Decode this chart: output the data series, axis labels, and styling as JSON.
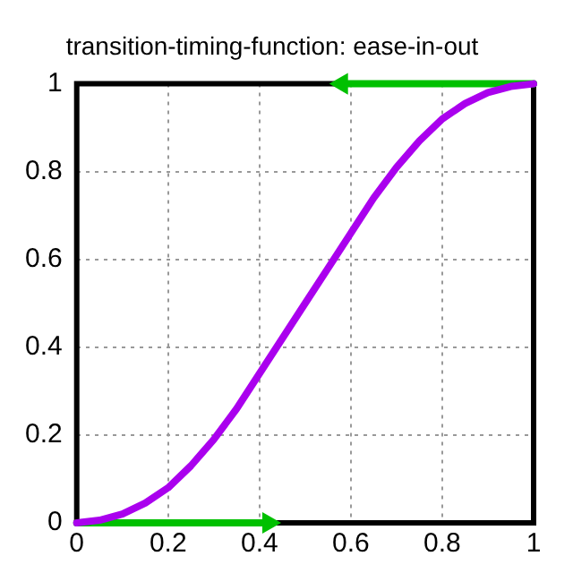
{
  "chart_data": {
    "type": "line",
    "title": "transition-timing-function: ease-in-out",
    "series": [
      {
        "color": "#aa00ee",
        "x": [
          0,
          0.05,
          0.1,
          0.15,
          0.2,
          0.25,
          0.3,
          0.35,
          0.4,
          0.45,
          0.5,
          0.55,
          0.6,
          0.65,
          0.7,
          0.75,
          0.8,
          0.85,
          0.9,
          0.95,
          1
        ],
        "values": [
          0,
          0.006,
          0.02,
          0.045,
          0.08,
          0.13,
          0.19,
          0.26,
          0.34,
          0.42,
          0.5,
          0.58,
          0.66,
          0.74,
          0.81,
          0.87,
          0.92,
          0.955,
          0.98,
          0.994,
          1
        ]
      },
      {
        "color": "#00c000",
        "marker": "triangle",
        "x": [
          0,
          0.42
        ],
        "values": [
          0,
          0
        ]
      },
      {
        "color": "#00c000",
        "marker": "triangle",
        "x": [
          1,
          0.58
        ],
        "values": [
          1,
          1
        ]
      }
    ],
    "xlim": [
      0,
      1
    ],
    "ylim": [
      0,
      1
    ],
    "xticks": [
      0,
      0.2,
      0.4,
      0.6,
      0.8,
      1
    ],
    "yticks": [
      0,
      0.2,
      0.4,
      0.6,
      0.8,
      1
    ],
    "grid": true,
    "legend": false,
    "marker": "none",
    "line_style": "solid"
  }
}
